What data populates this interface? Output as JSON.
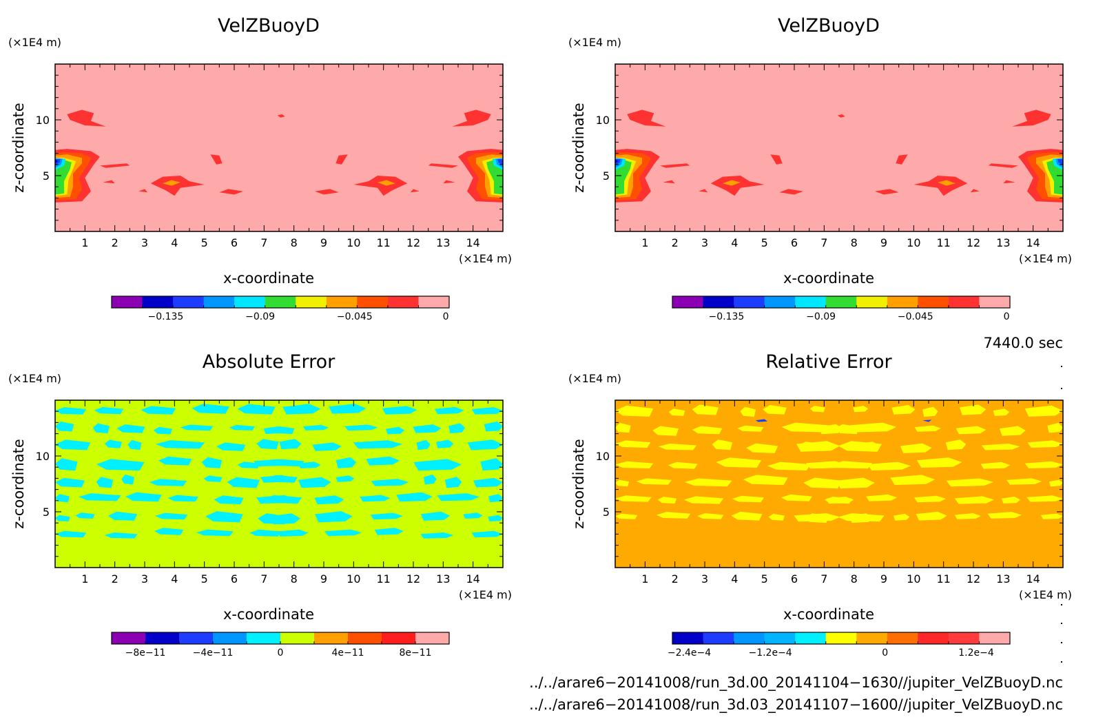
{
  "chart_data": [
    {
      "type": "heatmap",
      "title": "VelZBuoyD",
      "xlabel": "x-coordinate",
      "ylabel": "z-coordinate",
      "x_unit": "(×1E4 m)",
      "y_unit": "(×1E4 m)",
      "xlim": [
        0,
        15
      ],
      "ylim": [
        0,
        15
      ],
      "xticks": [
        "1",
        "2",
        "3",
        "4",
        "5",
        "6",
        "7",
        "8",
        "9",
        "10",
        "11",
        "12",
        "13",
        "14"
      ],
      "yticks": [
        "5",
        "10"
      ],
      "background_color": "#FFAAAA",
      "colorbar": {
        "colors": [
          "#8C00B4",
          "#0000C8",
          "#1E3CFF",
          "#0096FF",
          "#00E6FF",
          "#32DC32",
          "#F0F000",
          "#FFA000",
          "#FF5000",
          "#FF3232",
          "#FFAAAA"
        ],
        "tick_labels": [
          "−0.135",
          "−0.09",
          "−0.045",
          "0"
        ]
      }
    },
    {
      "type": "heatmap",
      "title": "VelZBuoyD",
      "xlabel": "x-coordinate",
      "ylabel": "z-coordinate",
      "x_unit": "(×1E4 m)",
      "y_unit": "(×1E4 m)",
      "xlim": [
        0,
        15
      ],
      "ylim": [
        0,
        15
      ],
      "xticks": [
        "1",
        "2",
        "3",
        "4",
        "5",
        "6",
        "7",
        "8",
        "9",
        "10",
        "11",
        "12",
        "13",
        "14"
      ],
      "yticks": [
        "5",
        "10"
      ],
      "background_color": "#FFAAAA",
      "colorbar": {
        "colors": [
          "#8C00B4",
          "#0000C8",
          "#1E3CFF",
          "#0096FF",
          "#00E6FF",
          "#32DC32",
          "#F0F000",
          "#FFA000",
          "#FF5000",
          "#FF3232",
          "#FFAAAA"
        ],
        "tick_labels": [
          "−0.135",
          "−0.09",
          "−0.045",
          "0"
        ]
      }
    },
    {
      "type": "heatmap",
      "title": "Absolute Error",
      "xlabel": "x-coordinate",
      "ylabel": "z-coordinate",
      "x_unit": "(×1E4 m)",
      "y_unit": "(×1E4 m)",
      "xlim": [
        0,
        15
      ],
      "ylim": [
        0,
        15
      ],
      "xticks": [
        "1",
        "2",
        "3",
        "4",
        "5",
        "6",
        "7",
        "8",
        "9",
        "10",
        "11",
        "12",
        "13",
        "14"
      ],
      "yticks": [
        "5",
        "10"
      ],
      "background_color": "#CCFF00",
      "colorbar": {
        "colors": [
          "#8C00B4",
          "#0000C8",
          "#1E3CFF",
          "#0096FF",
          "#00F0FF",
          "#CCFF00",
          "#FFA000",
          "#FF5000",
          "#FF1E1E",
          "#FFAAAA"
        ],
        "tick_labels": [
          "−8e−11",
          "−4e−11",
          "0",
          "4e−11",
          "8e−11"
        ]
      }
    },
    {
      "type": "heatmap",
      "title": "Relative Error",
      "xlabel": "x-coordinate",
      "ylabel": "z-coordinate",
      "x_unit": "(×1E4 m)",
      "y_unit": "(×1E4 m)",
      "xlim": [
        0,
        15
      ],
      "ylim": [
        0,
        15
      ],
      "xticks": [
        "1",
        "2",
        "3",
        "4",
        "5",
        "6",
        "7",
        "8",
        "9",
        "10",
        "11",
        "12",
        "13",
        "14"
      ],
      "yticks": [
        "5",
        "10"
      ],
      "background_color": "#FFAA00",
      "colorbar": {
        "colors": [
          "#0000C8",
          "#1E3CFF",
          "#0096FF",
          "#00B4FF",
          "#00F0FF",
          "#FFFF00",
          "#FFAA00",
          "#FF6E00",
          "#FF2828",
          "#FF3C3C",
          "#FFAAAA"
        ],
        "tick_labels": [
          "−2.4e−4",
          "−1.2e−4",
          "0",
          "1.2e−4"
        ]
      }
    }
  ],
  "time_label": "7440.0 sec",
  "file_paths": [
    "../../arare6−20141008/run_3d.00_20141104−1630//jupiter_VelZBuoyD.nc",
    "../../arare6−20141008/run_3d.03_20141107−1600//jupiter_VelZBuoyD.nc"
  ]
}
